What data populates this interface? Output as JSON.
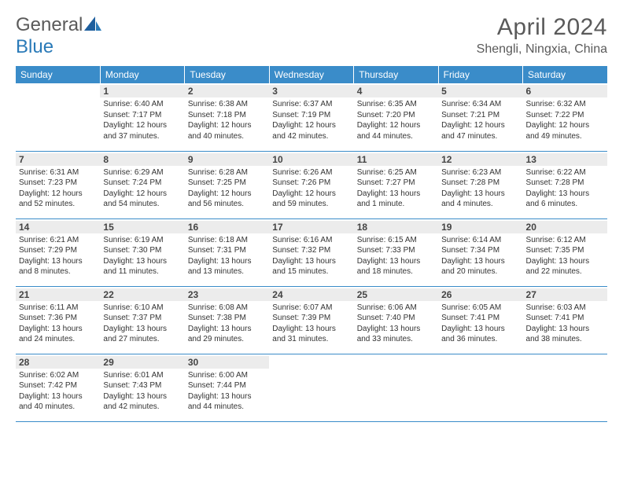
{
  "brand": {
    "part1": "General",
    "part2": "Blue"
  },
  "title": "April 2024",
  "location": "Shengli, Ningxia, China",
  "colors": {
    "header_bg": "#3a8cc9",
    "header_text": "#ffffff",
    "daynum_bg": "#ececec",
    "text": "#333333",
    "rule": "#3a8cc9"
  },
  "weekdays": [
    "Sunday",
    "Monday",
    "Tuesday",
    "Wednesday",
    "Thursday",
    "Friday",
    "Saturday"
  ],
  "first_weekday_index": 1,
  "days": [
    {
      "n": 1,
      "sr": "6:40 AM",
      "ss": "7:17 PM",
      "dl": "12 hours and 37 minutes."
    },
    {
      "n": 2,
      "sr": "6:38 AM",
      "ss": "7:18 PM",
      "dl": "12 hours and 40 minutes."
    },
    {
      "n": 3,
      "sr": "6:37 AM",
      "ss": "7:19 PM",
      "dl": "12 hours and 42 minutes."
    },
    {
      "n": 4,
      "sr": "6:35 AM",
      "ss": "7:20 PM",
      "dl": "12 hours and 44 minutes."
    },
    {
      "n": 5,
      "sr": "6:34 AM",
      "ss": "7:21 PM",
      "dl": "12 hours and 47 minutes."
    },
    {
      "n": 6,
      "sr": "6:32 AM",
      "ss": "7:22 PM",
      "dl": "12 hours and 49 minutes."
    },
    {
      "n": 7,
      "sr": "6:31 AM",
      "ss": "7:23 PM",
      "dl": "12 hours and 52 minutes."
    },
    {
      "n": 8,
      "sr": "6:29 AM",
      "ss": "7:24 PM",
      "dl": "12 hours and 54 minutes."
    },
    {
      "n": 9,
      "sr": "6:28 AM",
      "ss": "7:25 PM",
      "dl": "12 hours and 56 minutes."
    },
    {
      "n": 10,
      "sr": "6:26 AM",
      "ss": "7:26 PM",
      "dl": "12 hours and 59 minutes."
    },
    {
      "n": 11,
      "sr": "6:25 AM",
      "ss": "7:27 PM",
      "dl": "13 hours and 1 minute."
    },
    {
      "n": 12,
      "sr": "6:23 AM",
      "ss": "7:28 PM",
      "dl": "13 hours and 4 minutes."
    },
    {
      "n": 13,
      "sr": "6:22 AM",
      "ss": "7:28 PM",
      "dl": "13 hours and 6 minutes."
    },
    {
      "n": 14,
      "sr": "6:21 AM",
      "ss": "7:29 PM",
      "dl": "13 hours and 8 minutes."
    },
    {
      "n": 15,
      "sr": "6:19 AM",
      "ss": "7:30 PM",
      "dl": "13 hours and 11 minutes."
    },
    {
      "n": 16,
      "sr": "6:18 AM",
      "ss": "7:31 PM",
      "dl": "13 hours and 13 minutes."
    },
    {
      "n": 17,
      "sr": "6:16 AM",
      "ss": "7:32 PM",
      "dl": "13 hours and 15 minutes."
    },
    {
      "n": 18,
      "sr": "6:15 AM",
      "ss": "7:33 PM",
      "dl": "13 hours and 18 minutes."
    },
    {
      "n": 19,
      "sr": "6:14 AM",
      "ss": "7:34 PM",
      "dl": "13 hours and 20 minutes."
    },
    {
      "n": 20,
      "sr": "6:12 AM",
      "ss": "7:35 PM",
      "dl": "13 hours and 22 minutes."
    },
    {
      "n": 21,
      "sr": "6:11 AM",
      "ss": "7:36 PM",
      "dl": "13 hours and 24 minutes."
    },
    {
      "n": 22,
      "sr": "6:10 AM",
      "ss": "7:37 PM",
      "dl": "13 hours and 27 minutes."
    },
    {
      "n": 23,
      "sr": "6:08 AM",
      "ss": "7:38 PM",
      "dl": "13 hours and 29 minutes."
    },
    {
      "n": 24,
      "sr": "6:07 AM",
      "ss": "7:39 PM",
      "dl": "13 hours and 31 minutes."
    },
    {
      "n": 25,
      "sr": "6:06 AM",
      "ss": "7:40 PM",
      "dl": "13 hours and 33 minutes."
    },
    {
      "n": 26,
      "sr": "6:05 AM",
      "ss": "7:41 PM",
      "dl": "13 hours and 36 minutes."
    },
    {
      "n": 27,
      "sr": "6:03 AM",
      "ss": "7:41 PM",
      "dl": "13 hours and 38 minutes."
    },
    {
      "n": 28,
      "sr": "6:02 AM",
      "ss": "7:42 PM",
      "dl": "13 hours and 40 minutes."
    },
    {
      "n": 29,
      "sr": "6:01 AM",
      "ss": "7:43 PM",
      "dl": "13 hours and 42 minutes."
    },
    {
      "n": 30,
      "sr": "6:00 AM",
      "ss": "7:44 PM",
      "dl": "13 hours and 44 minutes."
    }
  ],
  "labels": {
    "sunrise": "Sunrise:",
    "sunset": "Sunset:",
    "daylight": "Daylight:"
  }
}
